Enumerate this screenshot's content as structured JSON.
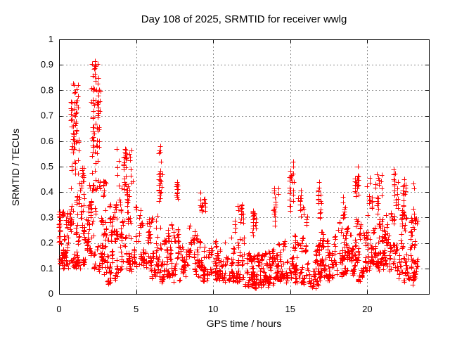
{
  "chart_data": {
    "type": "scatter",
    "title": "Day 108 of 2025, SRMTID for receiver wwlg",
    "xlabel": "GPS time / hours",
    "ylabel": "SRMTID / TECUs",
    "xlim": [
      0,
      24
    ],
    "ylim": [
      0,
      1
    ],
    "x_ticks": [
      0,
      5,
      10,
      15,
      20
    ],
    "x_tick_labels": [
      "0",
      "5",
      "10",
      "15",
      "20"
    ],
    "y_ticks": [
      0,
      0.1,
      0.2,
      0.3,
      0.4,
      0.5,
      0.6,
      0.7,
      0.8,
      0.9,
      1
    ],
    "y_tick_labels": [
      "0",
      "0.1",
      "0.2",
      "0.3",
      "0.4",
      "0.5",
      "0.6",
      "0.7",
      "0.8",
      "0.9",
      "1"
    ],
    "grid": true,
    "legend": "none",
    "marker": {
      "symbol": "plus",
      "color": "#ff0000",
      "size": 7
    },
    "grid_color": "#8a8a8a",
    "border_color": "#000000",
    "seed": 2025108,
    "series_name": "SRMTID",
    "point_clusters": [
      {
        "t": [
          0.0,
          1.0
        ],
        "v": [
          0.11,
          0.33
        ],
        "n": 110,
        "bias": "low"
      },
      {
        "t": [
          1.0,
          2.0
        ],
        "v": [
          0.11,
          0.44
        ],
        "n": 100,
        "bias": "low"
      },
      {
        "t": [
          2.0,
          3.0
        ],
        "v": [
          0.1,
          0.45
        ],
        "n": 100,
        "bias": "low"
      },
      {
        "t": [
          3.0,
          4.0
        ],
        "v": [
          0.07,
          0.37
        ],
        "n": 85,
        "bias": "low"
      },
      {
        "t": [
          4.0,
          5.0
        ],
        "v": [
          0.1,
          0.37
        ],
        "n": 80,
        "bias": "low"
      },
      {
        "t": [
          5.0,
          6.0
        ],
        "v": [
          0.1,
          0.32
        ],
        "n": 72,
        "bias": "low"
      },
      {
        "t": [
          6.0,
          7.0
        ],
        "v": [
          0.06,
          0.3
        ],
        "n": 72,
        "bias": "low"
      },
      {
        "t": [
          7.0,
          8.0
        ],
        "v": [
          0.06,
          0.28
        ],
        "n": 72,
        "bias": "low"
      },
      {
        "t": [
          8.0,
          9.0
        ],
        "v": [
          0.08,
          0.26
        ],
        "n": 72,
        "bias": "low"
      },
      {
        "t": [
          9.0,
          10.0
        ],
        "v": [
          0.06,
          0.22
        ],
        "n": 70,
        "bias": "low"
      },
      {
        "t": [
          10.0,
          11.0
        ],
        "v": [
          0.06,
          0.2
        ],
        "n": 70,
        "bias": "low"
      },
      {
        "t": [
          11.0,
          12.0
        ],
        "v": [
          0.05,
          0.22
        ],
        "n": 75,
        "bias": "low"
      },
      {
        "t": [
          12.0,
          13.0
        ],
        "v": [
          0.03,
          0.17
        ],
        "n": 90,
        "bias": "low"
      },
      {
        "t": [
          13.0,
          14.0
        ],
        "v": [
          0.04,
          0.17
        ],
        "n": 90,
        "bias": "low"
      },
      {
        "t": [
          14.0,
          15.0
        ],
        "v": [
          0.05,
          0.2
        ],
        "n": 80,
        "bias": "low"
      },
      {
        "t": [
          15.0,
          16.0
        ],
        "v": [
          0.04,
          0.22
        ],
        "n": 80,
        "bias": "low"
      },
      {
        "t": [
          16.0,
          17.0
        ],
        "v": [
          0.03,
          0.2
        ],
        "n": 80,
        "bias": "low"
      },
      {
        "t": [
          17.0,
          18.0
        ],
        "v": [
          0.06,
          0.25
        ],
        "n": 80,
        "bias": "low"
      },
      {
        "t": [
          18.0,
          19.0
        ],
        "v": [
          0.08,
          0.28
        ],
        "n": 80,
        "bias": "low"
      },
      {
        "t": [
          19.0,
          20.0
        ],
        "v": [
          0.08,
          0.3
        ],
        "n": 85,
        "bias": "low"
      },
      {
        "t": [
          20.0,
          21.0
        ],
        "v": [
          0.1,
          0.3
        ],
        "n": 85,
        "bias": "low"
      },
      {
        "t": [
          21.0,
          22.0
        ],
        "v": [
          0.1,
          0.32
        ],
        "n": 85,
        "bias": "low"
      },
      {
        "t": [
          22.0,
          23.3
        ],
        "v": [
          0.06,
          0.32
        ],
        "n": 100,
        "bias": "low"
      },
      {
        "t": [
          0.75,
          1.3
        ],
        "v": [
          0.3,
          0.83
        ],
        "n": 55,
        "bias": "column"
      },
      {
        "t": [
          2.1,
          2.7
        ],
        "v": [
          0.35,
          0.92
        ],
        "n": 60,
        "bias": "column"
      },
      {
        "t": [
          1.3,
          1.6
        ],
        "v": [
          0.3,
          0.5
        ],
        "n": 15,
        "bias": "column"
      },
      {
        "t": [
          3.7,
          4.8
        ],
        "v": [
          0.3,
          0.57
        ],
        "n": 45,
        "bias": "column"
      },
      {
        "t": [
          6.45,
          6.7
        ],
        "v": [
          0.28,
          0.58
        ],
        "n": 22,
        "bias": "column"
      },
      {
        "t": [
          7.55,
          7.7
        ],
        "v": [
          0.28,
          0.46
        ],
        "n": 12,
        "bias": "column"
      },
      {
        "t": [
          9.15,
          9.55
        ],
        "v": [
          0.28,
          0.43
        ],
        "n": 16,
        "bias": "column"
      },
      {
        "t": [
          11.4,
          12.0
        ],
        "v": [
          0.22,
          0.38
        ],
        "n": 20,
        "bias": "column"
      },
      {
        "t": [
          12.55,
          12.8
        ],
        "v": [
          0.22,
          0.33
        ],
        "n": 18,
        "bias": "column"
      },
      {
        "t": [
          13.9,
          14.3
        ],
        "v": [
          0.25,
          0.42
        ],
        "n": 16,
        "bias": "column"
      },
      {
        "t": [
          14.9,
          15.25
        ],
        "v": [
          0.25,
          0.49
        ],
        "n": 20,
        "bias": "column"
      },
      {
        "t": [
          15.5,
          16.1
        ],
        "v": [
          0.22,
          0.42
        ],
        "n": 18,
        "bias": "column"
      },
      {
        "t": [
          16.8,
          17.05
        ],
        "v": [
          0.22,
          0.44
        ],
        "n": 16,
        "bias": "column"
      },
      {
        "t": [
          18.4,
          18.6
        ],
        "v": [
          0.25,
          0.4
        ],
        "n": 10,
        "bias": "column"
      },
      {
        "t": [
          19.2,
          19.45
        ],
        "v": [
          0.28,
          0.48
        ],
        "n": 20,
        "bias": "column"
      },
      {
        "t": [
          20.0,
          21.0
        ],
        "v": [
          0.28,
          0.48
        ],
        "n": 30,
        "bias": "column"
      },
      {
        "t": [
          21.7,
          22.0
        ],
        "v": [
          0.28,
          0.5
        ],
        "n": 18,
        "bias": "column"
      },
      {
        "t": [
          22.2,
          22.5
        ],
        "v": [
          0.25,
          0.45
        ],
        "n": 14,
        "bias": "column"
      },
      {
        "t": [
          22.8,
          23.1
        ],
        "v": [
          0.05,
          0.44
        ],
        "n": 18,
        "bias": "column"
      },
      {
        "t": [
          2.95,
          3.1
        ],
        "v": [
          0.07,
          0.45
        ],
        "n": 14,
        "bias": "column"
      },
      {
        "t": [
          6.3,
          6.4
        ],
        "v": [
          0.05,
          0.3
        ],
        "n": 10,
        "bias": "column"
      },
      {
        "t": [
          7.2,
          7.3
        ],
        "v": [
          0.03,
          0.25
        ],
        "n": 10,
        "bias": "column"
      },
      {
        "t": [
          3.1,
          3.8
        ],
        "v": [
          0.03,
          0.09
        ],
        "n": 12,
        "bias": "column"
      },
      {
        "t": [
          19.4,
          19.7
        ],
        "v": [
          0.03,
          0.08
        ],
        "n": 10,
        "bias": "column"
      },
      {
        "t": [
          22.5,
          23.1
        ],
        "v": [
          0.03,
          0.1
        ],
        "n": 10,
        "bias": "column"
      }
    ],
    "highlight_points": [
      [
        2.32,
        0.915
      ],
      [
        2.38,
        0.895
      ],
      [
        2.28,
        0.885
      ],
      [
        0.92,
        0.825
      ],
      [
        0.98,
        0.82
      ],
      [
        2.42,
        0.8
      ],
      [
        2.5,
        0.795
      ],
      [
        1.02,
        0.79
      ],
      [
        1.08,
        0.755
      ],
      [
        2.35,
        0.76
      ],
      [
        2.3,
        0.74
      ],
      [
        2.55,
        0.72
      ],
      [
        1.05,
        0.7
      ],
      [
        2.2,
        0.69
      ],
      [
        2.6,
        0.655
      ],
      [
        1.12,
        0.64
      ],
      [
        2.25,
        0.615
      ],
      [
        2.62,
        0.6
      ],
      [
        1.15,
        0.6
      ],
      [
        0.85,
        0.58
      ],
      [
        15.2,
        0.52
      ],
      [
        15.18,
        0.5
      ],
      [
        19.38,
        0.5
      ],
      [
        6.55,
        0.58
      ],
      [
        4.3,
        0.57
      ],
      [
        23.0,
        0.435
      ],
      [
        16.9,
        0.44
      ],
      [
        0.05,
        0.3
      ],
      [
        0.1,
        0.29
      ],
      [
        12.6,
        0.04
      ],
      [
        16.5,
        0.035
      ],
      [
        19.55,
        0.05
      ],
      [
        22.95,
        0.035
      ]
    ]
  }
}
